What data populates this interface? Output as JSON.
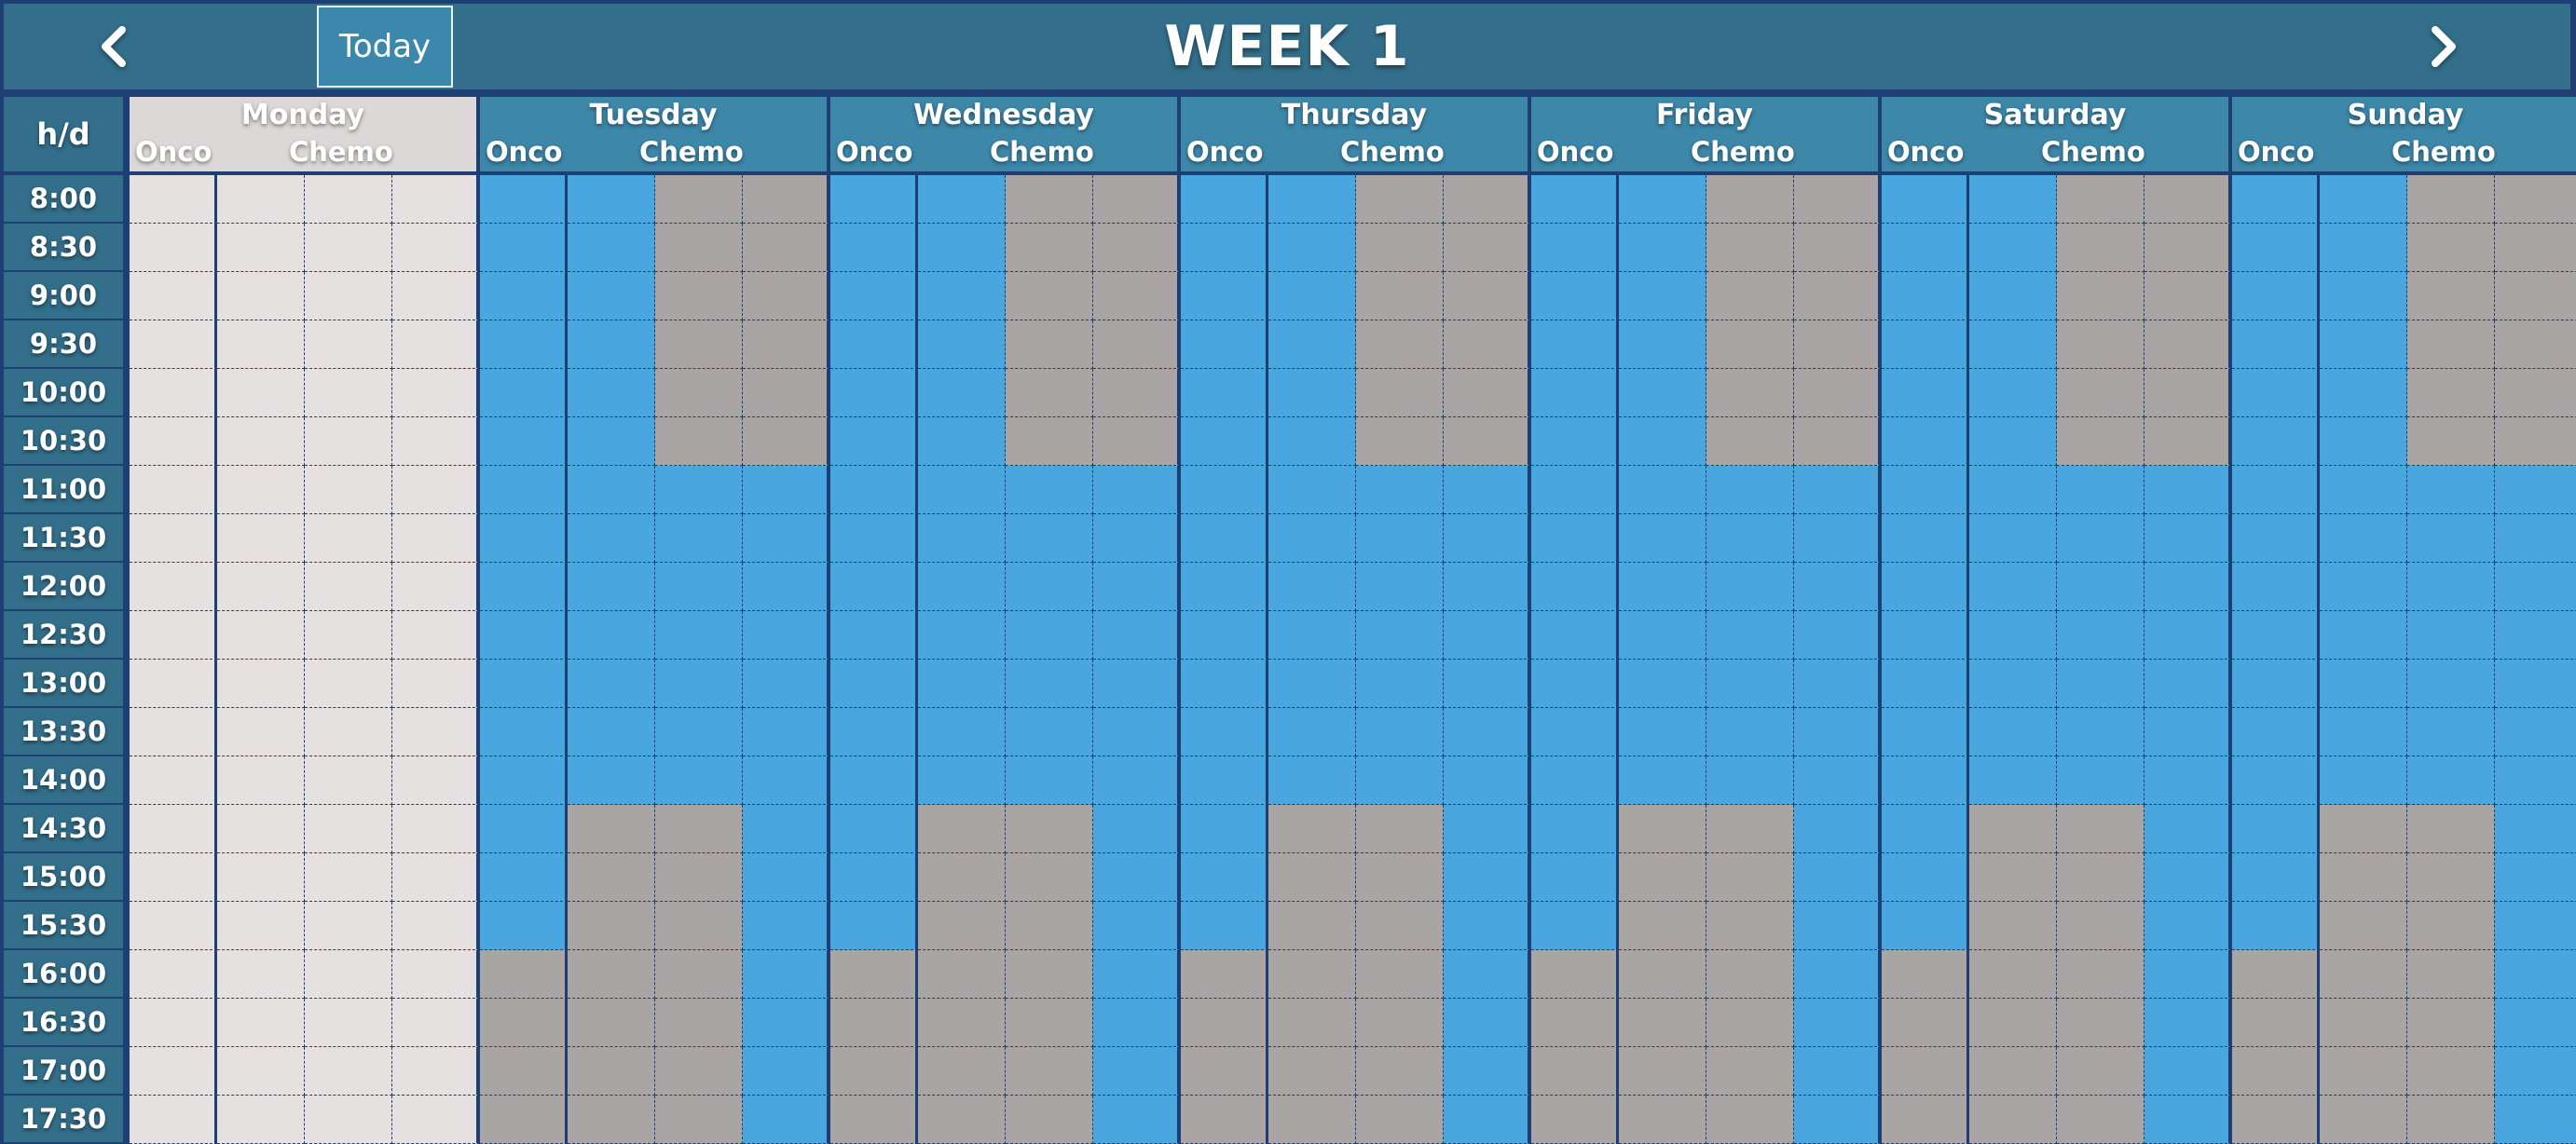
{
  "header": {
    "title": "WEEK 1",
    "today_label": "Today",
    "prev_icon": "chevron-left-icon",
    "next_icon": "chevron-right-icon"
  },
  "grid": {
    "corner_label": "h/d",
    "sub_labels": [
      "Onco",
      "Chemo"
    ],
    "times": [
      "8:00",
      "8:30",
      "9:00",
      "9:30",
      "10:00",
      "10:30",
      "11:00",
      "11:30",
      "12:00",
      "12:30",
      "13:00",
      "13:30",
      "14:00",
      "14:30",
      "15:00",
      "15:30",
      "16:00",
      "16:30",
      "17:00",
      "17:30"
    ],
    "days": [
      {
        "name": "Monday",
        "is_today": true
      },
      {
        "name": "Tuesday",
        "is_today": false
      },
      {
        "name": "Wednesday",
        "is_today": false
      },
      {
        "name": "Thursday",
        "is_today": false
      },
      {
        "name": "Friday",
        "is_today": false
      },
      {
        "name": "Saturday",
        "is_today": false
      },
      {
        "name": "Sunday",
        "is_today": false
      }
    ],
    "slot_pattern": {
      "description_legend": {
        "A": "available",
        "B": "blocked",
        "P": "past"
      },
      "today_rows": "P",
      "rows": [
        "AABB",
        "AABB",
        "AABB",
        "AABB",
        "AABB",
        "AABB",
        "AAAA",
        "AAAA",
        "AAAA",
        "AAAA",
        "AAAA",
        "AAAA",
        "AAAA",
        "ABBA",
        "ABBA",
        "ABBA",
        "BBBA",
        "BBBA",
        "BBBA",
        "BBBA"
      ]
    }
  },
  "colors": {
    "frame": "#1d3f73",
    "header": "#336f8a",
    "day_header": "#3d87a9",
    "available": "#4aa6df",
    "blocked": "#a9a5a5",
    "past": "#e6e1e1"
  }
}
